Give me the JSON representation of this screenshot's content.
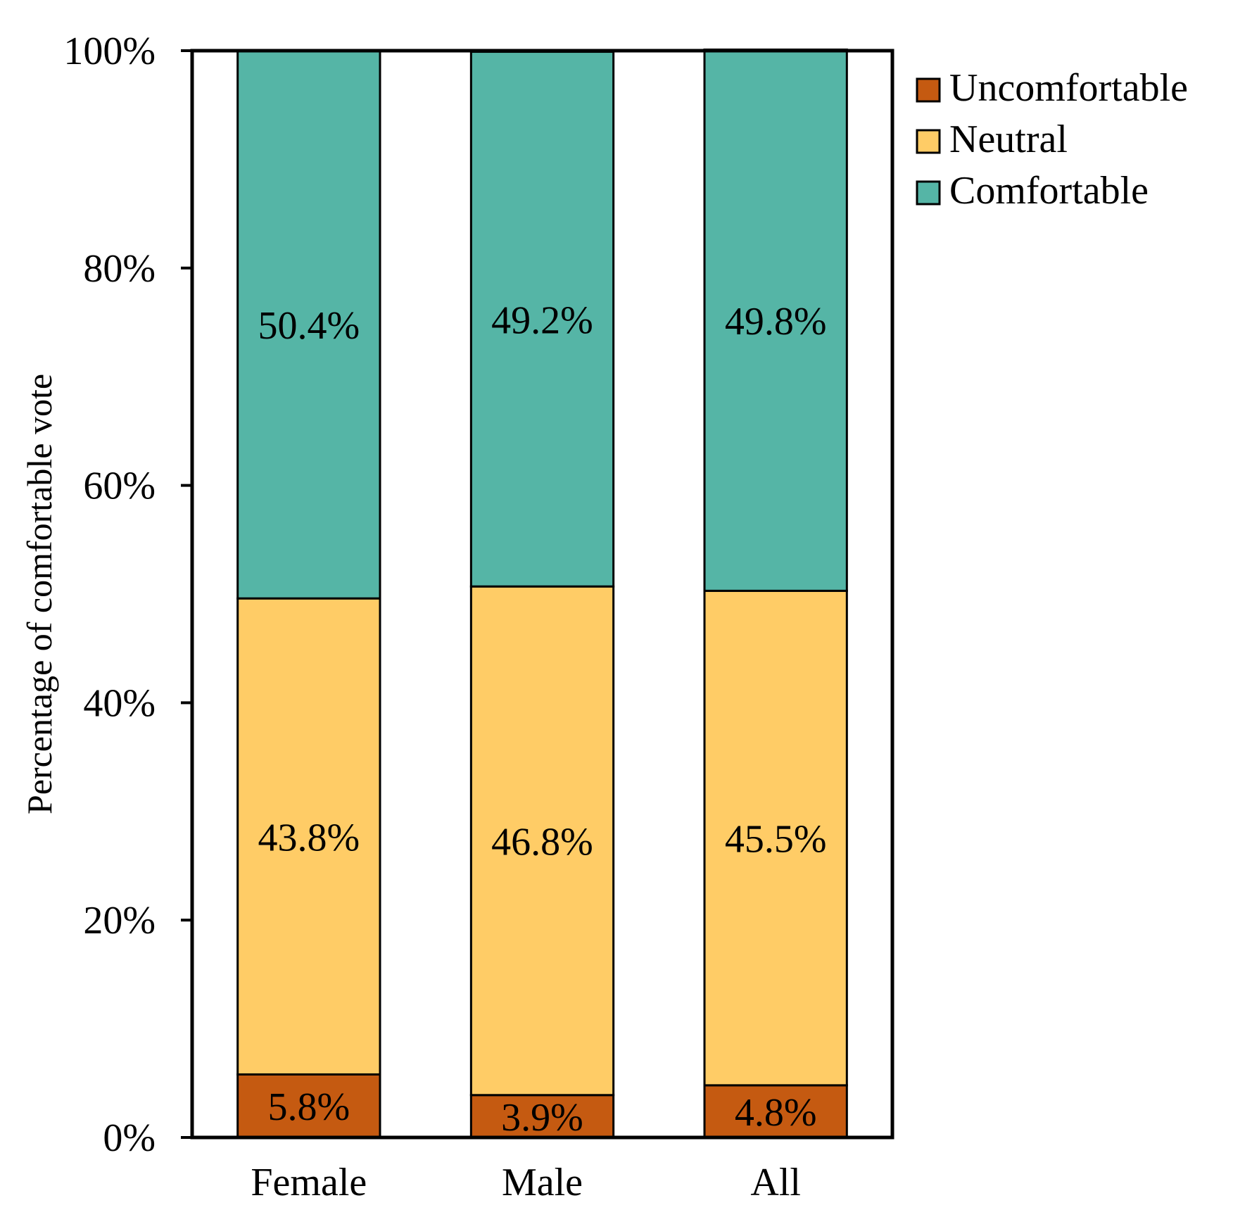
{
  "chart_data": {
    "type": "bar",
    "stacked": true,
    "title": "",
    "xlabel": "",
    "ylabel": "Percentage of comfortable vote",
    "ylim": [
      0,
      100
    ],
    "yticks": [
      "0%",
      "20%",
      "40%",
      "60%",
      "80%",
      "100%"
    ],
    "ytick_values": [
      0,
      20,
      40,
      60,
      80,
      100
    ],
    "categories": [
      "Female",
      "Male",
      "All"
    ],
    "series": [
      {
        "name": "Uncomfortable",
        "color": "#C55A11",
        "values": [
          5.8,
          3.9,
          4.8
        ],
        "labels": [
          "5.8%",
          "3.9%",
          "4.8%"
        ]
      },
      {
        "name": "Neutral",
        "color": "#FFCC66",
        "values": [
          43.8,
          46.8,
          45.5
        ],
        "labels": [
          "43.8%",
          "46.8%",
          "45.5%"
        ]
      },
      {
        "name": "Comfortable",
        "color": "#55B5A6",
        "values": [
          50.4,
          49.2,
          49.8
        ],
        "labels": [
          "50.4%",
          "49.2%",
          "49.8%"
        ]
      }
    ],
    "legend": {
      "position": "top-right",
      "order": [
        "Uncomfortable",
        "Neutral",
        "Comfortable"
      ]
    },
    "grid": false
  }
}
